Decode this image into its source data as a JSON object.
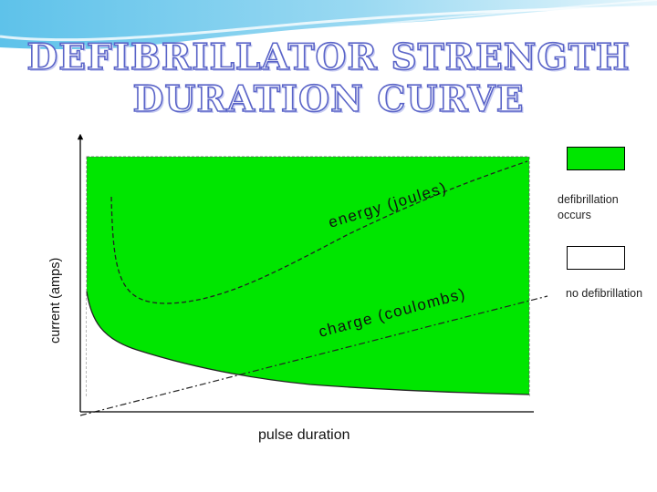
{
  "slide": {
    "title_line1": "DEFIBRILLATOR STRENGTH",
    "title_line2": "DURATION CURVE",
    "colors": {
      "title_fill": "#ffffff",
      "title_outline": "#5a64c8",
      "wave_top": "#5ec2ea",
      "defib_region": "#00e600"
    }
  },
  "legend": {
    "items": [
      {
        "label": "defibrillation occurs",
        "color": "#00e600"
      },
      {
        "label": "no defibrillation",
        "color": "#ffffff"
      }
    ]
  },
  "chart_data": {
    "type": "line",
    "xlabel": "pulse duration",
    "ylabel": "current (amps)",
    "axis_ticks": false,
    "series": [
      {
        "name": "energy (joules)",
        "style": "dashed",
        "shape": "U-shaped curve with a minimum at short pulse duration, rising with longer duration"
      },
      {
        "name": "charge (coulombs)",
        "style": "dashed",
        "shape": "straight line increasing with pulse duration"
      },
      {
        "name": "",
        "style": "solid",
        "shape": "strength-duration boundary: current falls steeply then levels off as pulse duration increases"
      }
    ],
    "regions": [
      {
        "label": "defibrillation occurs",
        "position": "above the strength-duration curve",
        "color": "#00e600"
      },
      {
        "label": "no defibrillation",
        "position": "below the strength-duration curve",
        "color": "#ffffff"
      }
    ]
  }
}
